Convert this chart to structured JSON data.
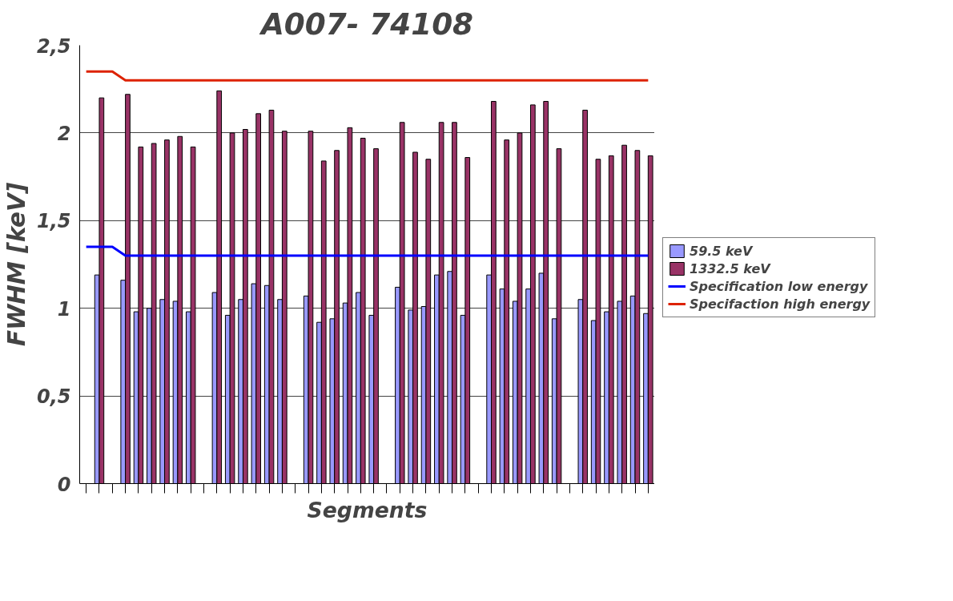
{
  "chart_data": {
    "type": "bar",
    "title": "A007- 74108",
    "xlabel": "Segments",
    "ylabel": "FWHM [keV]",
    "categories": [
      null,
      null,
      null,
      null,
      null,
      null,
      null,
      null,
      null,
      null,
      null,
      null,
      null,
      null,
      null,
      null,
      null,
      null,
      null,
      null,
      null,
      null,
      null,
      null,
      null,
      null,
      null,
      null,
      null,
      null,
      null,
      null,
      null,
      null,
      null,
      null,
      null,
      null,
      null,
      null,
      null,
      null,
      null,
      null
    ],
    "series": [
      {
        "name": "59.5 keV",
        "color": "#9999ff",
        "values": [
          null,
          1.19,
          null,
          1.16,
          0.98,
          1.0,
          1.05,
          1.04,
          0.98,
          null,
          1.09,
          0.96,
          1.05,
          1.14,
          1.13,
          1.05,
          null,
          1.07,
          0.92,
          0.94,
          1.03,
          1.09,
          0.96,
          null,
          1.12,
          0.99,
          1.01,
          1.19,
          1.21,
          0.96,
          null,
          1.19,
          1.11,
          1.04,
          1.11,
          1.2,
          0.94,
          null,
          1.05,
          0.93,
          0.98,
          1.04,
          1.07,
          0.97
        ]
      },
      {
        "name": "1332.5 keV",
        "color": "#993366",
        "values": [
          null,
          2.2,
          null,
          2.22,
          1.92,
          1.94,
          1.96,
          1.98,
          1.92,
          null,
          2.24,
          2.0,
          2.02,
          2.11,
          2.13,
          2.01,
          null,
          2.01,
          1.84,
          1.9,
          2.03,
          1.97,
          1.91,
          null,
          2.06,
          1.89,
          1.85,
          2.06,
          2.06,
          1.86,
          null,
          2.18,
          1.96,
          2.0,
          2.16,
          2.18,
          1.91,
          null,
          2.13,
          1.85,
          1.87,
          1.93,
          1.9,
          1.87
        ]
      },
      {
        "name": "Specification low energy",
        "type": "line",
        "color": "#0000ff",
        "values": [
          1.35,
          1.35,
          1.35,
          1.3,
          1.3,
          1.3,
          1.3,
          1.3,
          1.3,
          1.3,
          1.3,
          1.3,
          1.3,
          1.3,
          1.3,
          1.3,
          1.3,
          1.3,
          1.3,
          1.3,
          1.3,
          1.3,
          1.3,
          1.3,
          1.3,
          1.3,
          1.3,
          1.3,
          1.3,
          1.3,
          1.3,
          1.3,
          1.3,
          1.3,
          1.3,
          1.3,
          1.3,
          1.3,
          1.3,
          1.3,
          1.3,
          1.3,
          1.3,
          1.3
        ]
      },
      {
        "name": "Specifaction high energy",
        "type": "line",
        "color": "#dd2200",
        "values": [
          2.35,
          2.35,
          2.35,
          2.3,
          2.3,
          2.3,
          2.3,
          2.3,
          2.3,
          2.3,
          2.3,
          2.3,
          2.3,
          2.3,
          2.3,
          2.3,
          2.3,
          2.3,
          2.3,
          2.3,
          2.3,
          2.3,
          2.3,
          2.3,
          2.3,
          2.3,
          2.3,
          2.3,
          2.3,
          2.3,
          2.3,
          2.3,
          2.3,
          2.3,
          2.3,
          2.3,
          2.3,
          2.3,
          2.3,
          2.3,
          2.3,
          2.3,
          2.3,
          2.3
        ]
      }
    ],
    "ylim": [
      0,
      2.5
    ],
    "yticks": [
      0,
      {
        "value": 0.5,
        "label": "0,5"
      },
      1,
      {
        "value": 1.5,
        "label": "1,5"
      },
      2,
      {
        "value": 2.5,
        "label": "2,5"
      }
    ],
    "grid": "y",
    "legend": "right",
    "marker": "none",
    "line_style": "solid"
  }
}
